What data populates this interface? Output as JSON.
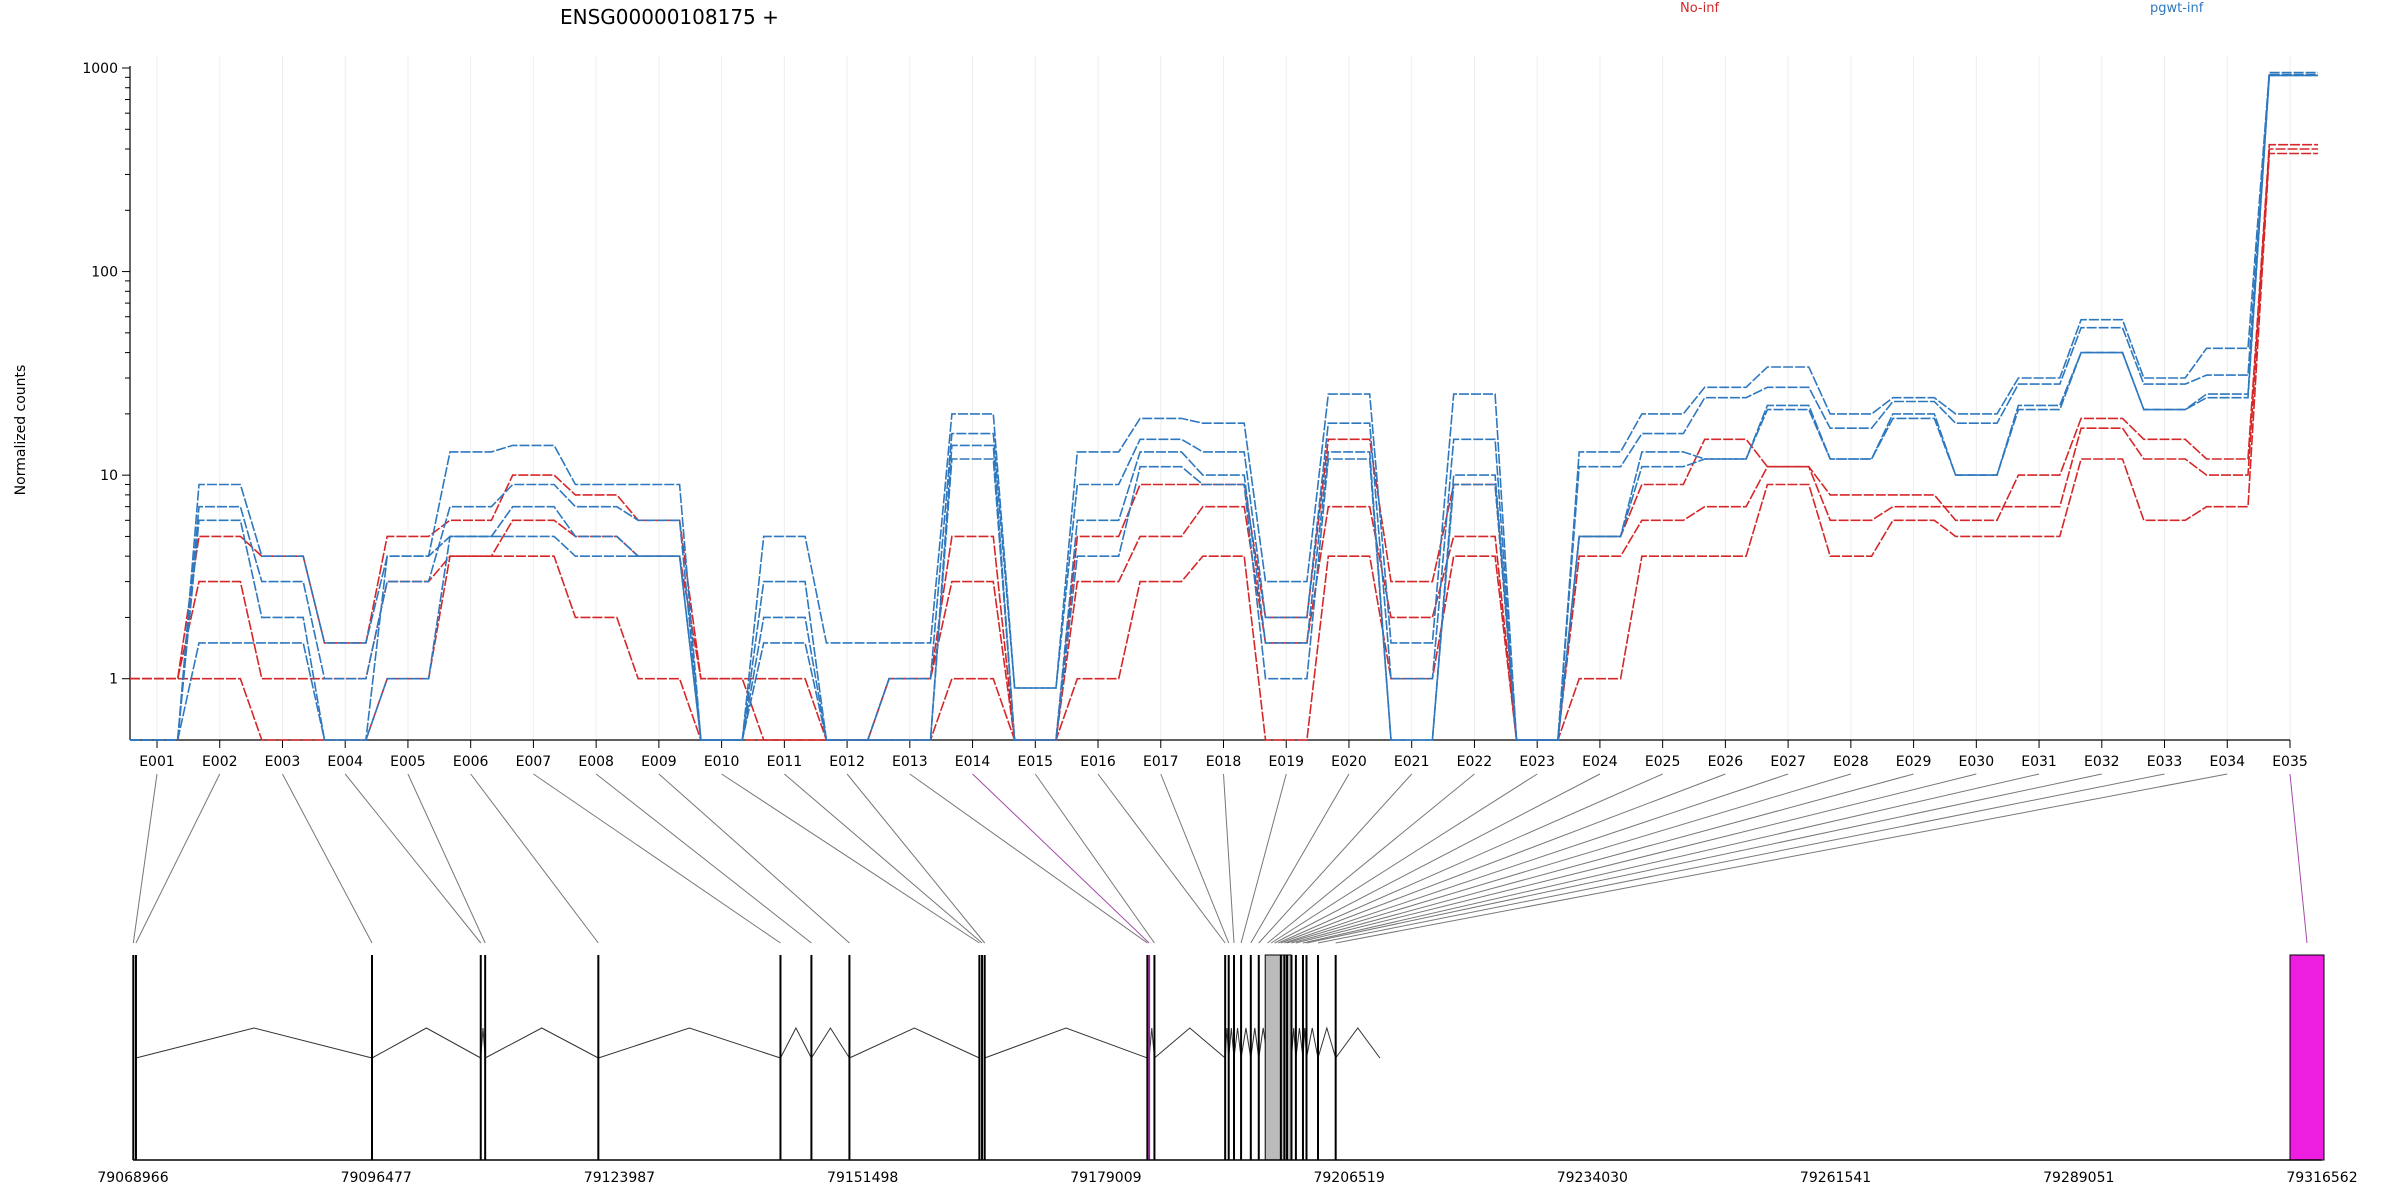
{
  "chart_data": {
    "type": "line",
    "title": "ENSG00000108175 +",
    "ylabel": "Normalized counts",
    "yscale": "log",
    "ylim": [
      0.5,
      1000
    ],
    "yticks": [
      1,
      10,
      100,
      1000
    ],
    "ytick_labels": [
      "1",
      "10",
      "100",
      "1000"
    ],
    "legend": [
      {
        "name": "No-inf",
        "color": "#d62728"
      },
      {
        "name": "pgwt-inf",
        "color": "#2e78bf"
      }
    ],
    "categories": [
      "E001",
      "E002",
      "E003",
      "E004",
      "E005",
      "E006",
      "E007",
      "E008",
      "E009",
      "E010",
      "E011",
      "E012",
      "E013",
      "E014",
      "E015",
      "E016",
      "E017",
      "E018",
      "E019",
      "E020",
      "E021",
      "E022",
      "E023",
      "E024",
      "E025",
      "E026",
      "E027",
      "E028",
      "E029",
      "E030",
      "E031",
      "E032",
      "E033",
      "E034",
      "E035"
    ],
    "series": [
      {
        "group": "No-inf",
        "color": "#d62728",
        "values": [
          1,
          5,
          4,
          1.5,
          5,
          6,
          10,
          8,
          6,
          1,
          1,
          0.5,
          1,
          5,
          0.5,
          5,
          9,
          9,
          2,
          15,
          3,
          9,
          0.5,
          5,
          9,
          15,
          11,
          8,
          8,
          6,
          10,
          19,
          15,
          12,
          420
        ]
      },
      {
        "group": "No-inf",
        "color": "#d62728",
        "values": [
          1,
          3,
          1,
          1,
          3,
          4,
          6,
          5,
          4,
          1,
          0.5,
          0.5,
          1,
          3,
          0.5,
          3,
          5,
          7,
          1.5,
          7,
          2,
          5,
          0.5,
          4,
          6,
          7,
          11,
          6,
          7,
          7,
          7,
          17,
          12,
          10,
          400
        ]
      },
      {
        "group": "No-inf",
        "color": "#d62728",
        "values": [
          1,
          1,
          0.5,
          0.5,
          1,
          4,
          4,
          2,
          1,
          0.5,
          0.5,
          0.5,
          0.5,
          1,
          0.5,
          1,
          3,
          4,
          0.5,
          4,
          1,
          4,
          0.5,
          1,
          4,
          4,
          9,
          4,
          6,
          5,
          5,
          12,
          6,
          7,
          380
        ]
      },
      {
        "group": "pgwt-inf",
        "color": "#2e78bf",
        "values": [
          0.5,
          9,
          4,
          1.5,
          4,
          13,
          14,
          9,
          9,
          0.5,
          5,
          1.5,
          1.5,
          20,
          0.9,
          13,
          19,
          18,
          3,
          25,
          1.5,
          25,
          0.5,
          13,
          20,
          27,
          34,
          20,
          24,
          20,
          30,
          58,
          30,
          42,
          950
        ]
      },
      {
        "group": "pgwt-inf",
        "color": "#2e78bf",
        "values": [
          0.5,
          7,
          3,
          1,
          3,
          7,
          9,
          7,
          6,
          0.5,
          3,
          0.5,
          1,
          16,
          0.9,
          9,
          15,
          13,
          2,
          18,
          1,
          15,
          0.5,
          11,
          16,
          24,
          27,
          17,
          23,
          18,
          28,
          53,
          28,
          31,
          930
        ]
      },
      {
        "group": "pgwt-inf",
        "color": "#2e78bf",
        "values": [
          0.5,
          6,
          2,
          0.5,
          4,
          5,
          7,
          5,
          4,
          0.5,
          2,
          0.5,
          0.5,
          14,
          0.5,
          6,
          13,
          10,
          1.5,
          13,
          0.5,
          10,
          0.5,
          5,
          13,
          12,
          22,
          12,
          20,
          10,
          22,
          40,
          21,
          25,
          920
        ]
      },
      {
        "group": "pgwt-inf",
        "color": "#2e78bf",
        "values": [
          0.5,
          1.5,
          1.5,
          0.5,
          1,
          5,
          5,
          4,
          4,
          0.5,
          1.5,
          0.5,
          0.5,
          12,
          0.5,
          4,
          11,
          9,
          1,
          12,
          0.5,
          9,
          0.5,
          5,
          11,
          12,
          21,
          12,
          19,
          10,
          21,
          40,
          21,
          24,
          920
        ]
      }
    ],
    "genome_axis_ticks": [
      "79068966",
      "79096477",
      "79123987",
      "79151498",
      "79179009",
      "79206519",
      "79234030",
      "79261541",
      "79289051",
      "79316562"
    ],
    "genome_range": [
      79068966,
      79316562
    ],
    "exon_positions": [
      79069000,
      79069300,
      79096000,
      79108300,
      79108800,
      79121600,
      79142200,
      79145700,
      79150000,
      79164700,
      79165000,
      79165300,
      79183700,
      79183900,
      79184500,
      79192500,
      79192900,
      79193500,
      79194300,
      79195400,
      79196300,
      79197300,
      79197700,
      79198100,
      79198500,
      79198800,
      79199200,
      79199500,
      79200000,
      79200500,
      79201300,
      79201700,
      79203000,
      79205000,
      79210000
    ],
    "highlighted_exons": [
      14,
      35
    ]
  }
}
